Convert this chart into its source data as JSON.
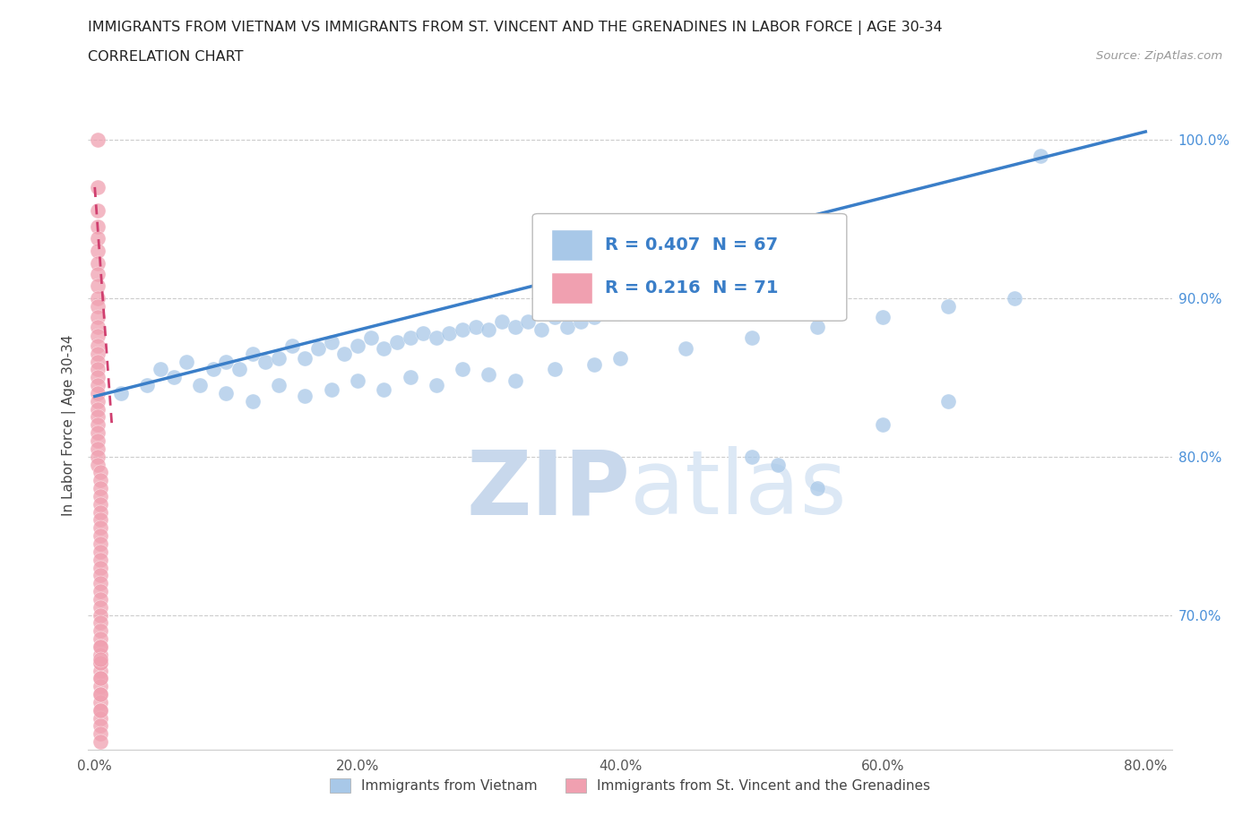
{
  "title_line1": "IMMIGRANTS FROM VIETNAM VS IMMIGRANTS FROM ST. VINCENT AND THE GRENADINES IN LABOR FORCE | AGE 30-34",
  "title_line2": "CORRELATION CHART",
  "source_text": "Source: ZipAtlas.com",
  "ylabel": "In Labor Force | Age 30-34",
  "legend_label1": "Immigrants from Vietnam",
  "legend_label2": "Immigrants from St. Vincent and the Grenadines",
  "R1": 0.407,
  "N1": 67,
  "R2": 0.216,
  "N2": 71,
  "color_vietnam": "#A8C8E8",
  "color_stvincent": "#F0A0B0",
  "trendline_color_vietnam": "#3A7EC8",
  "trendline_color_stvincent": "#D04070",
  "trendline_stvincent_dashed": true,
  "background_color": "#FFFFFF",
  "watermark_text": "ZIPatlas",
  "watermark_color": "#DCE8F5",
  "xlim": [
    -0.005,
    0.82
  ],
  "ylim": [
    0.615,
    1.025
  ],
  "xticks": [
    0.0,
    0.2,
    0.4,
    0.6,
    0.8
  ],
  "xtick_labels": [
    "0.0%",
    "20.0%",
    "40.0%",
    "60.0%",
    "80.0%"
  ],
  "yticks_right": [
    0.7,
    0.8,
    0.9,
    1.0
  ],
  "ytick_labels_right": [
    "70.0%",
    "80.0%",
    "90.0%",
    "100.0%"
  ],
  "grid_color": "#CCCCCC",
  "vietnam_x": [
    0.02,
    0.04,
    0.05,
    0.06,
    0.07,
    0.08,
    0.09,
    0.1,
    0.11,
    0.12,
    0.13,
    0.14,
    0.15,
    0.16,
    0.17,
    0.18,
    0.19,
    0.2,
    0.21,
    0.22,
    0.23,
    0.24,
    0.25,
    0.26,
    0.27,
    0.28,
    0.29,
    0.3,
    0.31,
    0.32,
    0.33,
    0.34,
    0.35,
    0.36,
    0.37,
    0.38,
    0.4,
    0.42,
    0.44,
    0.46,
    0.1,
    0.12,
    0.14,
    0.16,
    0.18,
    0.2,
    0.22,
    0.24,
    0.26,
    0.28,
    0.3,
    0.32,
    0.35,
    0.38,
    0.4,
    0.45,
    0.5,
    0.55,
    0.6,
    0.65,
    0.5,
    0.52,
    0.55,
    0.6,
    0.65,
    0.7,
    0.72
  ],
  "vietnam_y": [
    0.84,
    0.845,
    0.855,
    0.85,
    0.86,
    0.845,
    0.855,
    0.86,
    0.855,
    0.865,
    0.86,
    0.862,
    0.87,
    0.862,
    0.868,
    0.872,
    0.865,
    0.87,
    0.875,
    0.868,
    0.872,
    0.875,
    0.878,
    0.875,
    0.878,
    0.88,
    0.882,
    0.88,
    0.885,
    0.882,
    0.885,
    0.88,
    0.888,
    0.882,
    0.885,
    0.888,
    0.89,
    0.892,
    0.895,
    0.898,
    0.84,
    0.835,
    0.845,
    0.838,
    0.842,
    0.848,
    0.842,
    0.85,
    0.845,
    0.855,
    0.852,
    0.848,
    0.855,
    0.858,
    0.862,
    0.868,
    0.875,
    0.882,
    0.888,
    0.895,
    0.8,
    0.795,
    0.78,
    0.82,
    0.835,
    0.9,
    0.99
  ],
  "stvincent_x": [
    0.002,
    0.002,
    0.002,
    0.002,
    0.002,
    0.002,
    0.002,
    0.002,
    0.002,
    0.002,
    0.002,
    0.002,
    0.002,
    0.002,
    0.002,
    0.002,
    0.002,
    0.002,
    0.002,
    0.002,
    0.002,
    0.002,
    0.002,
    0.002,
    0.002,
    0.002,
    0.002,
    0.002,
    0.002,
    0.002,
    0.004,
    0.004,
    0.004,
    0.004,
    0.004,
    0.004,
    0.004,
    0.004,
    0.004,
    0.004,
    0.004,
    0.004,
    0.004,
    0.004,
    0.004,
    0.004,
    0.004,
    0.004,
    0.004,
    0.004,
    0.004,
    0.004,
    0.004,
    0.004,
    0.004,
    0.004,
    0.004,
    0.004,
    0.004,
    0.004,
    0.004,
    0.004,
    0.004,
    0.004,
    0.004,
    0.004,
    0.004,
    0.004,
    0.004,
    0.004,
    0.004
  ],
  "stvincent_y": [
    1.0,
    0.97,
    0.955,
    0.945,
    0.938,
    0.93,
    0.922,
    0.915,
    0.908,
    0.9,
    0.895,
    0.888,
    0.882,
    0.876,
    0.87,
    0.865,
    0.86,
    0.855,
    0.85,
    0.845,
    0.84,
    0.835,
    0.83,
    0.825,
    0.82,
    0.815,
    0.81,
    0.805,
    0.8,
    0.795,
    0.79,
    0.785,
    0.78,
    0.775,
    0.77,
    0.765,
    0.76,
    0.755,
    0.75,
    0.745,
    0.74,
    0.735,
    0.73,
    0.725,
    0.72,
    0.715,
    0.71,
    0.705,
    0.7,
    0.695,
    0.69,
    0.685,
    0.68,
    0.675,
    0.67,
    0.665,
    0.66,
    0.655,
    0.65,
    0.645,
    0.64,
    0.635,
    0.63,
    0.625,
    0.62,
    0.64,
    0.65,
    0.67,
    0.66,
    0.68,
    0.672
  ],
  "trendline_vietnam_x0": 0.0,
  "trendline_vietnam_y0": 0.838,
  "trendline_vietnam_x1": 0.8,
  "trendline_vietnam_y1": 1.005,
  "trendline_sv_x0": 0.0,
  "trendline_sv_y0": 0.97,
  "trendline_sv_x1": 0.013,
  "trendline_sv_y1": 0.82
}
